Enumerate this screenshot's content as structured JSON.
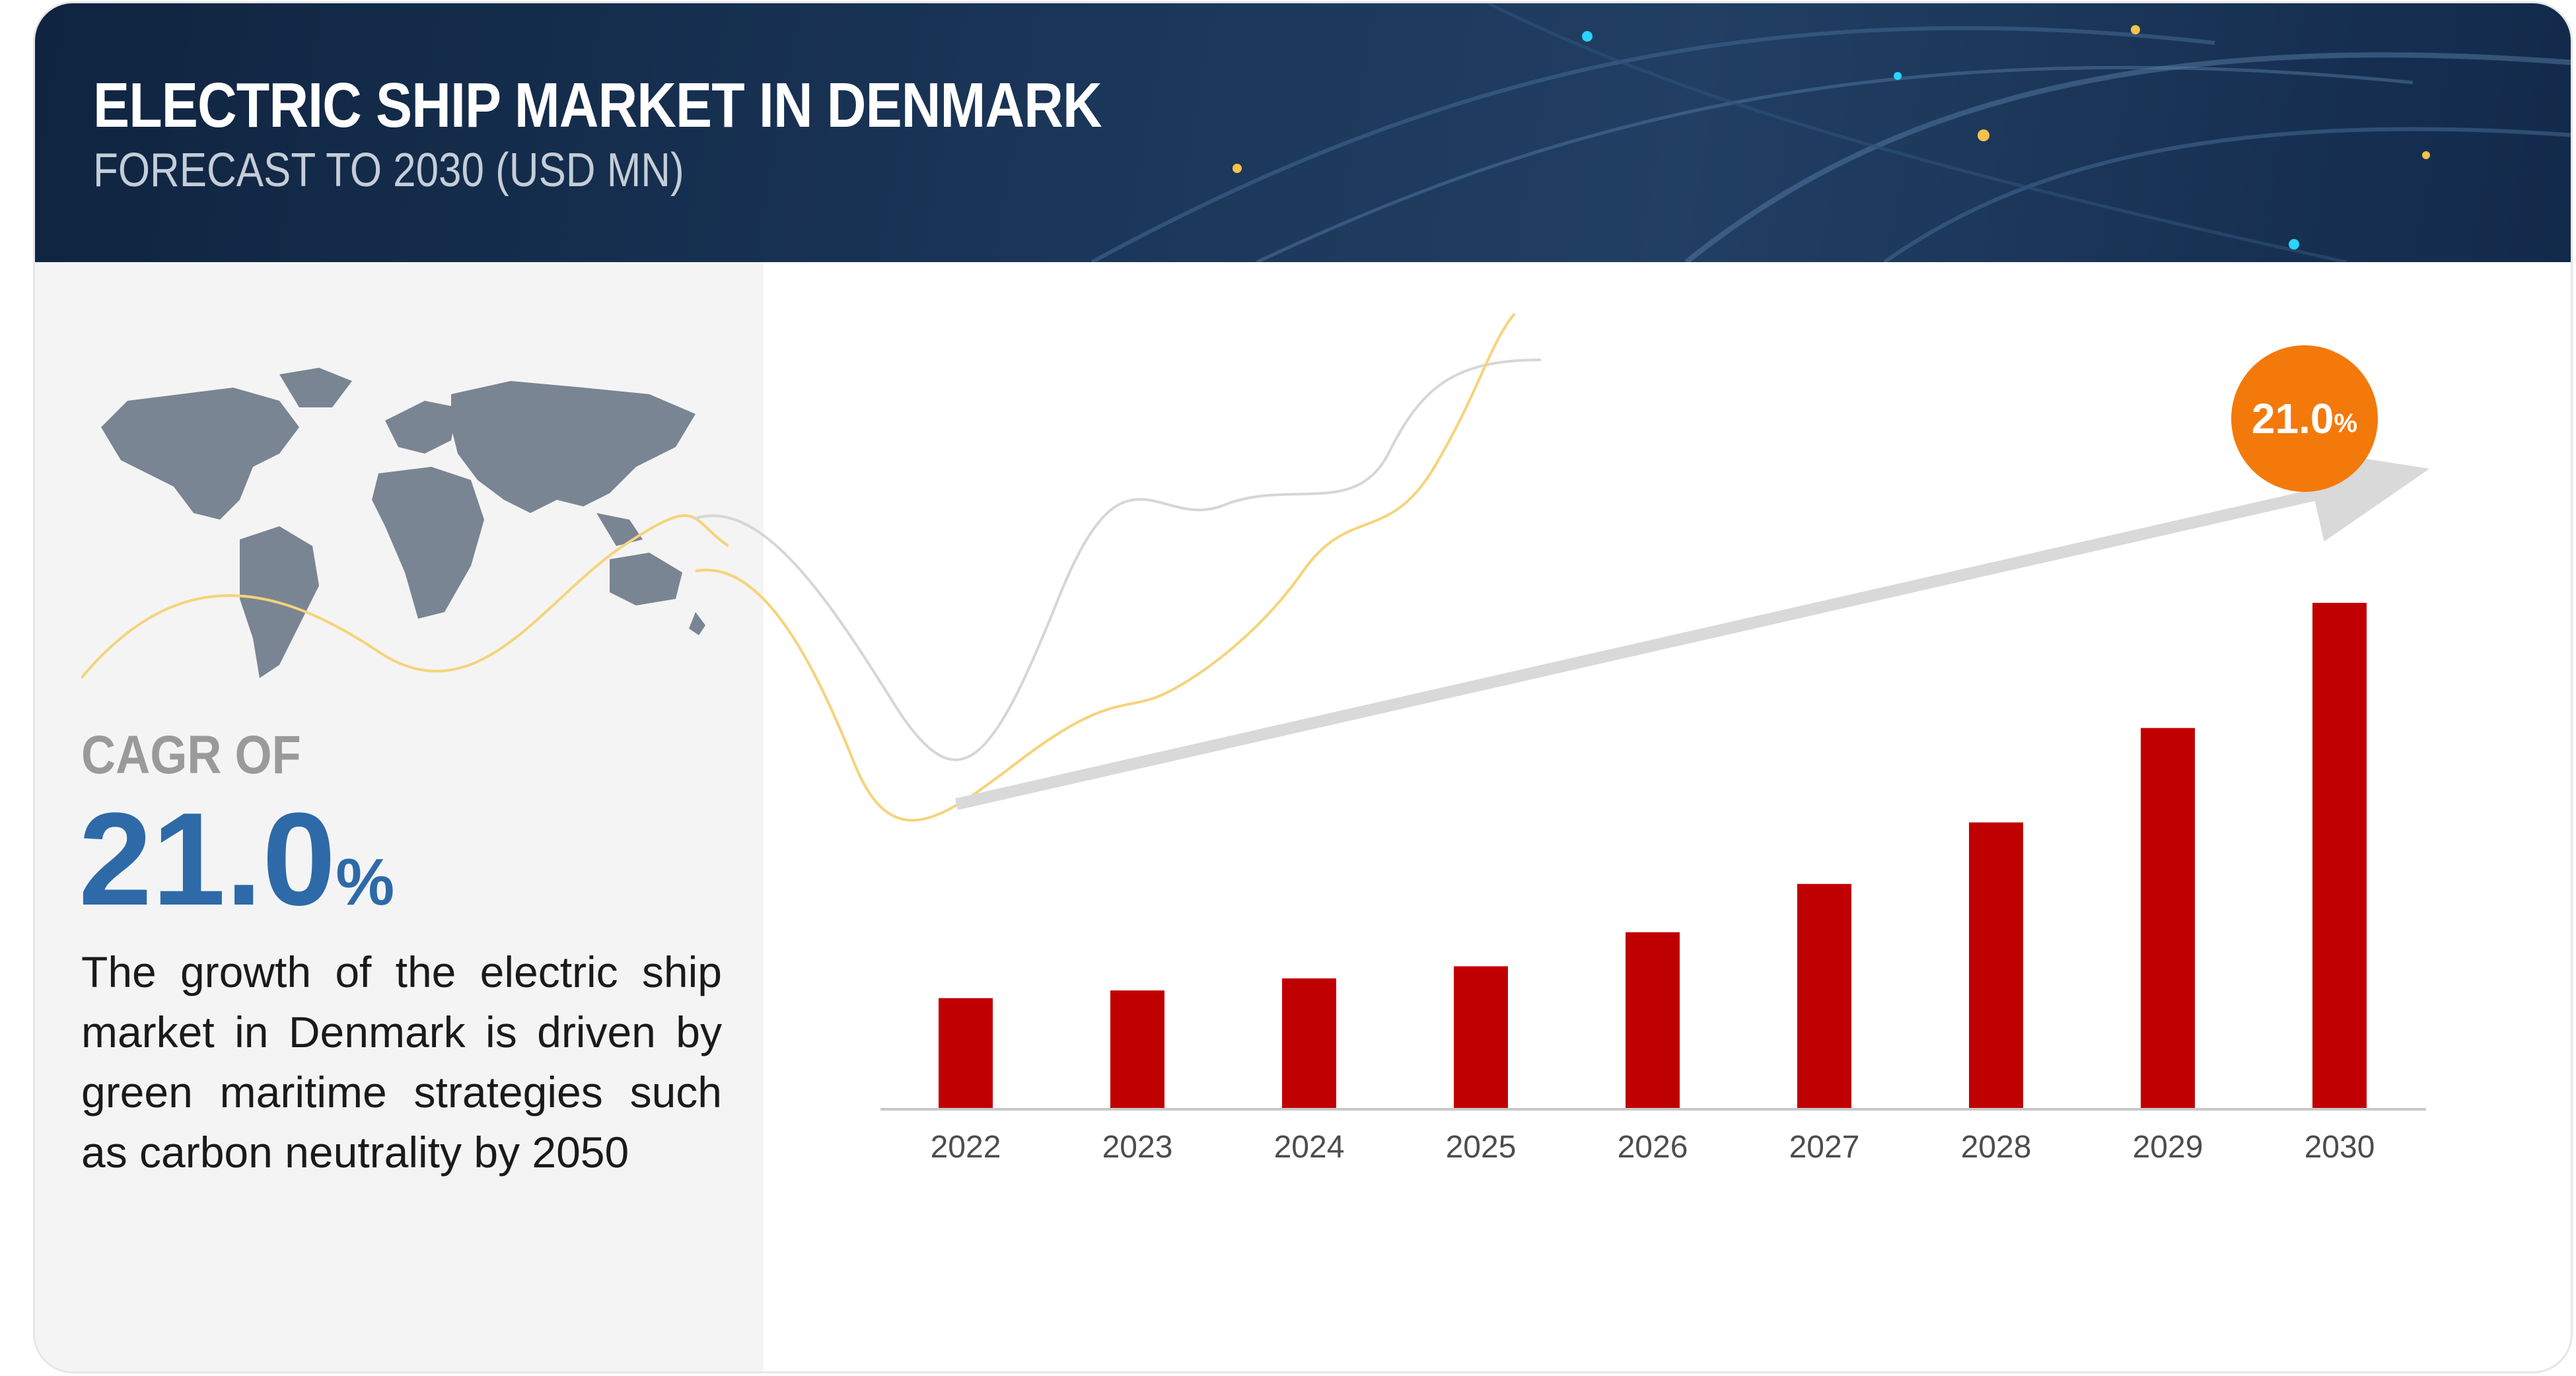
{
  "header": {
    "title": "ELECTRIC SHIP MARKET IN DENMARK",
    "subtitle": "FORECAST TO 2030 (USD MN)"
  },
  "left_panel": {
    "cagr_label": "CAGR OF",
    "cagr_value": "21.0",
    "cagr_unit": "%",
    "description": "The growth of the electric ship market in Denmark is driven by green maritime strategies such as carbon neutrality by 2050"
  },
  "badge": {
    "value": "21.0",
    "unit": "%"
  },
  "colors": {
    "bar": "#c00000",
    "badge": "#f4790b",
    "cagr_value": "#2e6aa8",
    "header_bg": "#1a3558"
  },
  "chart_data": {
    "type": "bar",
    "title": "ELECTRIC SHIP MARKET IN DENMARK",
    "subtitle": "FORECAST TO 2030 (USD MN)",
    "categories": [
      "2022",
      "2023",
      "2024",
      "2025",
      "2026",
      "2027",
      "2028",
      "2029",
      "2030"
    ],
    "values": [
      1.0,
      1.07,
      1.18,
      1.29,
      1.6,
      2.04,
      2.6,
      3.46,
      4.6
    ],
    "value_labels_shown": false,
    "y_axis_shown": false,
    "ylim": [
      0,
      4.6
    ],
    "grid": false,
    "trend_arrow": {
      "from": "2022",
      "to": "2030",
      "label": "21.0%"
    }
  }
}
